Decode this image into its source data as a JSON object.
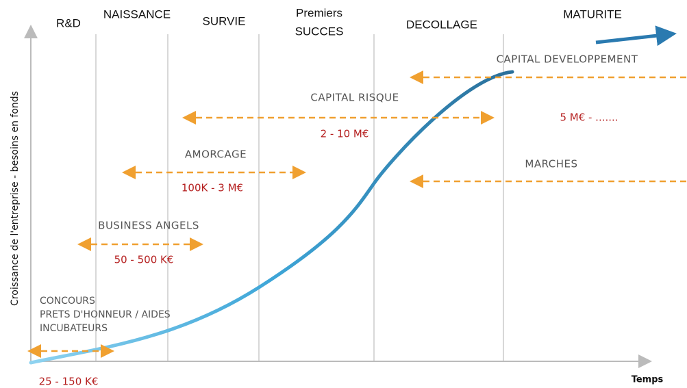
{
  "axes": {
    "y_label": "Croissance de l'entreprise - besoins en fonds",
    "x_label": "Temps"
  },
  "phases": [
    "R&D",
    "NAISSANCE",
    "SURVIE",
    "Premiers",
    "SUCCES",
    "DECOLLAGE",
    "MATURITE"
  ],
  "funding": [
    {
      "name_lines": [
        "CONCOURS",
        "PRETS D'HONNEUR / AIDES",
        "INCUBATEURS"
      ],
      "amount": "25 - 150 K€"
    },
    {
      "name": "BUSINESS ANGELS",
      "amount": "50 - 500 K€"
    },
    {
      "name": "AMORCAGE",
      "amount": "100K - 3 M€"
    },
    {
      "name": "CAPITAL RISQUE",
      "amount": "2 - 10 M€"
    },
    {
      "name": "CAPITAL DEVELOPPEMENT",
      "amount": "5 M€ - ......."
    },
    {
      "name": "MARCHES"
    }
  ]
}
